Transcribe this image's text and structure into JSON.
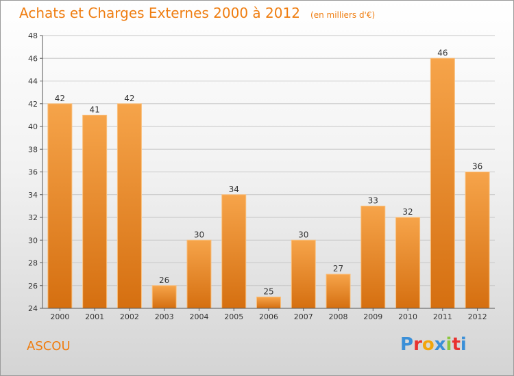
{
  "header": {
    "title": "Achats et Charges Externes 2000 à 2012",
    "unit": "(en milliers d'€)"
  },
  "footer": {
    "commune": "ASCOU",
    "logo_text": "Proxiti",
    "logo_colors": [
      "#3a8fd8",
      "#e8322f",
      "#f2a50d",
      "#3a8fd8",
      "#8cc63f",
      "#e8322f",
      "#3a8fd8"
    ]
  },
  "colors": {
    "accent": "#ef7d10",
    "bar_top": "#f6a44a",
    "bar_bottom": "#d56f10",
    "bar_edge": "#f9c07e",
    "grid": "#c6c6c6"
  },
  "chart_data": {
    "type": "bar",
    "title": "Achats et Charges Externes 2000 à 2012",
    "xlabel": "",
    "ylabel": "",
    "categories": [
      "2000",
      "2001",
      "2002",
      "2003",
      "2004",
      "2005",
      "2006",
      "2007",
      "2008",
      "2009",
      "2010",
      "2011",
      "2012"
    ],
    "values": [
      42,
      41,
      42,
      26,
      30,
      34,
      25,
      30,
      27,
      33,
      32,
      46,
      36
    ],
    "ylim": [
      24,
      48
    ],
    "yticks": [
      24,
      26,
      28,
      30,
      32,
      34,
      36,
      38,
      40,
      42,
      44,
      46,
      48
    ],
    "grid": true,
    "legend": "none"
  }
}
